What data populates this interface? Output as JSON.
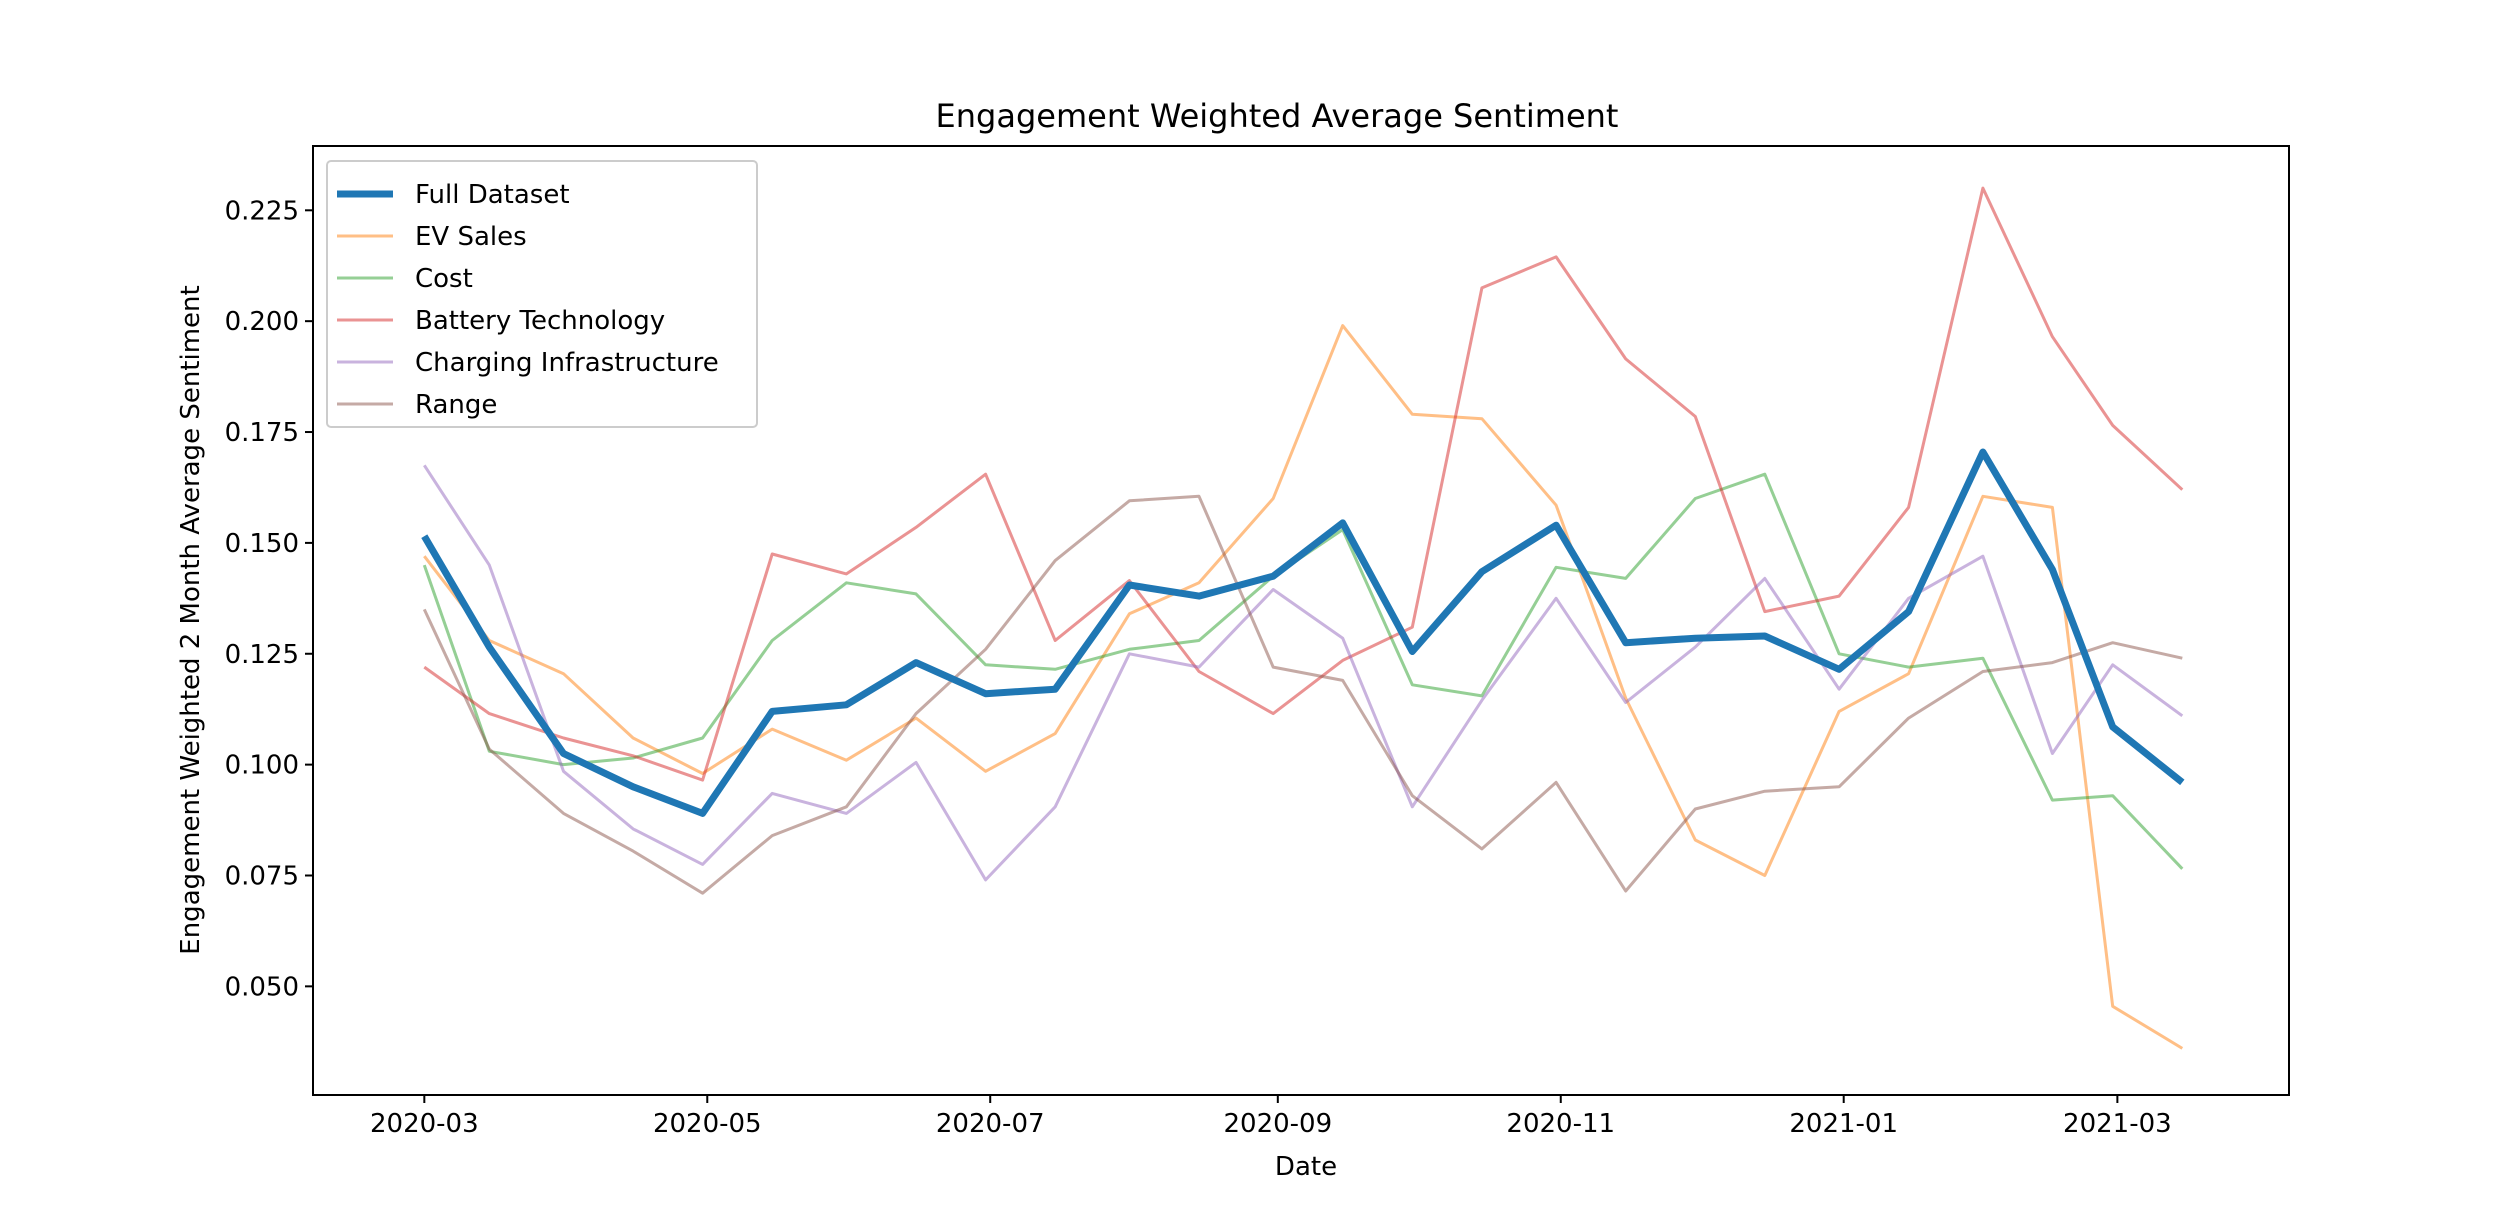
{
  "chart_data": {
    "type": "line",
    "title": "Engagement Weighted Average Sentiment",
    "xlabel": "Date",
    "ylabel": "Engagement Weighted 2 Month Average Sentiment",
    "x_scale": "date",
    "xlim": [
      "2020-02-06",
      "2021-04-07"
    ],
    "ylim": [
      0.0255,
      0.2395
    ],
    "x_ticks": [
      {
        "value": "2020-03-01",
        "label": "2020-03"
      },
      {
        "value": "2020-05-01",
        "label": "2020-05"
      },
      {
        "value": "2020-07-01",
        "label": "2020-07"
      },
      {
        "value": "2020-09-01",
        "label": "2020-09"
      },
      {
        "value": "2020-11-01",
        "label": "2020-11"
      },
      {
        "value": "2021-01-01",
        "label": "2021-01"
      },
      {
        "value": "2021-03-01",
        "label": "2021-03"
      }
    ],
    "y_ticks": [
      0.05,
      0.075,
      0.1,
      0.125,
      0.15,
      0.175,
      0.2,
      0.225
    ],
    "y_tick_labels": [
      "0.050",
      "0.075",
      "0.100",
      "0.125",
      "0.150",
      "0.175",
      "0.200",
      "0.225"
    ],
    "grid": false,
    "legend_position": "top-left",
    "x": [
      "2020-03-01",
      "2020-03-15",
      "2020-03-31",
      "2020-04-15",
      "2020-04-30",
      "2020-05-15",
      "2020-05-31",
      "2020-06-15",
      "2020-06-30",
      "2020-07-15",
      "2020-07-31",
      "2020-08-15",
      "2020-08-31",
      "2020-09-15",
      "2020-09-30",
      "2020-10-15",
      "2020-10-31",
      "2020-11-15",
      "2020-11-30",
      "2020-12-15",
      "2020-12-31",
      "2021-01-15",
      "2021-01-31",
      "2021-02-15",
      "2021-02-28",
      "2021-03-15"
    ],
    "series": [
      {
        "name": "Full Dataset",
        "color": "#1f77b4",
        "emphasis": true,
        "values": [
          0.1515,
          0.1265,
          0.1025,
          0.095,
          0.089,
          0.112,
          0.1135,
          0.123,
          0.116,
          0.117,
          0.1405,
          0.138,
          0.1425,
          0.1545,
          0.1255,
          0.1435,
          0.154,
          0.1275,
          0.1285,
          0.129,
          0.1215,
          0.1345,
          0.1705,
          0.144,
          0.1085,
          0.096
        ]
      },
      {
        "name": "EV Sales",
        "color": "#ff7f0e",
        "emphasis": false,
        "values": [
          0.147,
          0.128,
          0.1205,
          0.106,
          0.098,
          0.108,
          0.101,
          0.1105,
          0.0985,
          0.107,
          0.134,
          0.141,
          0.16,
          0.199,
          0.179,
          0.178,
          0.1585,
          0.115,
          0.083,
          0.075,
          0.112,
          0.1205,
          0.1605,
          0.158,
          0.0455,
          0.036
        ]
      },
      {
        "name": "Cost",
        "color": "#2ca02c",
        "emphasis": false,
        "values": [
          0.145,
          0.103,
          0.1,
          0.1015,
          0.106,
          0.128,
          0.141,
          0.1385,
          0.1225,
          0.1215,
          0.126,
          0.128,
          0.1425,
          0.153,
          0.118,
          0.1155,
          0.1445,
          0.142,
          0.16,
          0.1655,
          0.125,
          0.122,
          0.124,
          0.092,
          0.093,
          0.0765
        ]
      },
      {
        "name": "Battery Technology",
        "color": "#d62728",
        "emphasis": false,
        "values": [
          0.122,
          0.1115,
          0.106,
          0.102,
          0.0965,
          0.1475,
          0.143,
          0.1535,
          0.1655,
          0.128,
          0.1415,
          0.121,
          0.1115,
          0.1235,
          0.131,
          0.2075,
          0.2145,
          0.1915,
          0.1785,
          0.1345,
          0.138,
          0.158,
          0.23,
          0.1965,
          0.1765,
          0.162
        ]
      },
      {
        "name": "Charging Infrastructure",
        "color": "#9467bd",
        "emphasis": false,
        "values": [
          0.1675,
          0.145,
          0.0985,
          0.0855,
          0.0775,
          0.0935,
          0.089,
          0.1005,
          0.074,
          0.0905,
          0.125,
          0.122,
          0.1395,
          0.1285,
          0.0905,
          0.1145,
          0.1375,
          0.114,
          0.1265,
          0.142,
          0.117,
          0.1375,
          0.147,
          0.1025,
          0.1225,
          0.111
        ]
      },
      {
        "name": "Range",
        "color": "#8c564b",
        "emphasis": false,
        "values": [
          0.135,
          0.1035,
          0.089,
          0.0805,
          0.071,
          0.084,
          0.0905,
          0.1115,
          0.126,
          0.146,
          0.1595,
          0.1605,
          0.122,
          0.119,
          0.093,
          0.081,
          0.096,
          0.0715,
          0.09,
          0.094,
          0.095,
          0.1105,
          0.121,
          0.123,
          0.1275,
          0.124
        ]
      }
    ]
  }
}
